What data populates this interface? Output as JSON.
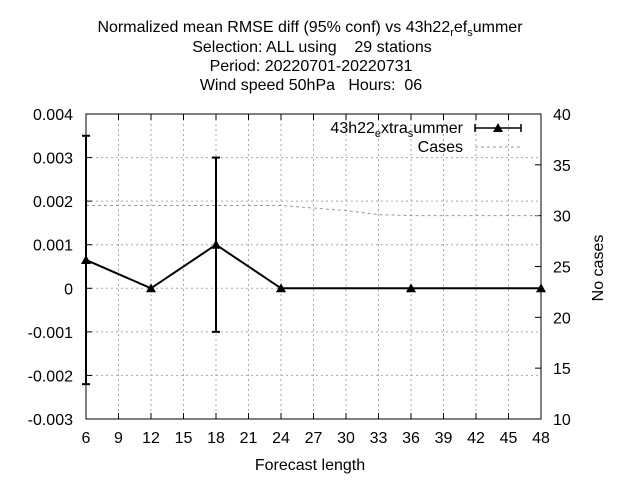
{
  "title": {
    "line1_main": "Normalized mean RMSE diff (95% conf) vs 43h22",
    "line1_sub1": "r",
    "line1_mid": "ef",
    "line1_sub2": "s",
    "line1_end": "ummer",
    "line2": "Selection: ALL using    29 stations",
    "line3": "Period: 20220701-20220731",
    "line4": "Wind speed 50hPa   Hours:  06"
  },
  "legend": {
    "series1_main": "43h22",
    "series1_sub1": "e",
    "series1_mid": "xtra",
    "series1_sub2": "s",
    "series1_end": "ummer",
    "series2": "Cases",
    "position": "top-right"
  },
  "chart_data": {
    "type": "line",
    "xlabel": "Forecast length",
    "ylabel": "",
    "y2label": "No cases",
    "xlim": [
      6,
      48
    ],
    "ylim": [
      -0.003,
      0.004
    ],
    "y2lim": [
      10,
      40
    ],
    "grid": true,
    "x_ticks": [
      "6",
      "9",
      "12",
      "15",
      "18",
      "21",
      "24",
      "27",
      "30",
      "33",
      "36",
      "39",
      "42",
      "45",
      "48"
    ],
    "y_ticks": [
      "0.004",
      "0.003",
      "0.002",
      "0.001",
      "0",
      "-0.001",
      "-0.002",
      "-0.003"
    ],
    "y2_ticks": [
      "40",
      "35",
      "30",
      "25",
      "20",
      "15",
      "10"
    ],
    "series": [
      {
        "name": "43h22_extra_summer",
        "color": "#000000",
        "marker": "triangle",
        "x": [
          6,
          12,
          18,
          24,
          36,
          48
        ],
        "y": [
          0.00065,
          0.0,
          0.001,
          0.0,
          0.0,
          0.0
        ],
        "err_low": [
          -0.0022,
          0.0,
          -0.001,
          0.0,
          0.0,
          0.0
        ],
        "err_high": [
          0.0035,
          0.0,
          0.003,
          0.0,
          0.0,
          0.0
        ]
      },
      {
        "name": "Cases",
        "color": "#999999",
        "axis": "y2",
        "dashed": true,
        "x": [
          6,
          12,
          18,
          24,
          30,
          33,
          36,
          42,
          48
        ],
        "y": [
          31,
          31,
          31,
          31,
          30.5,
          30.1,
          30,
          30,
          30
        ]
      }
    ]
  }
}
